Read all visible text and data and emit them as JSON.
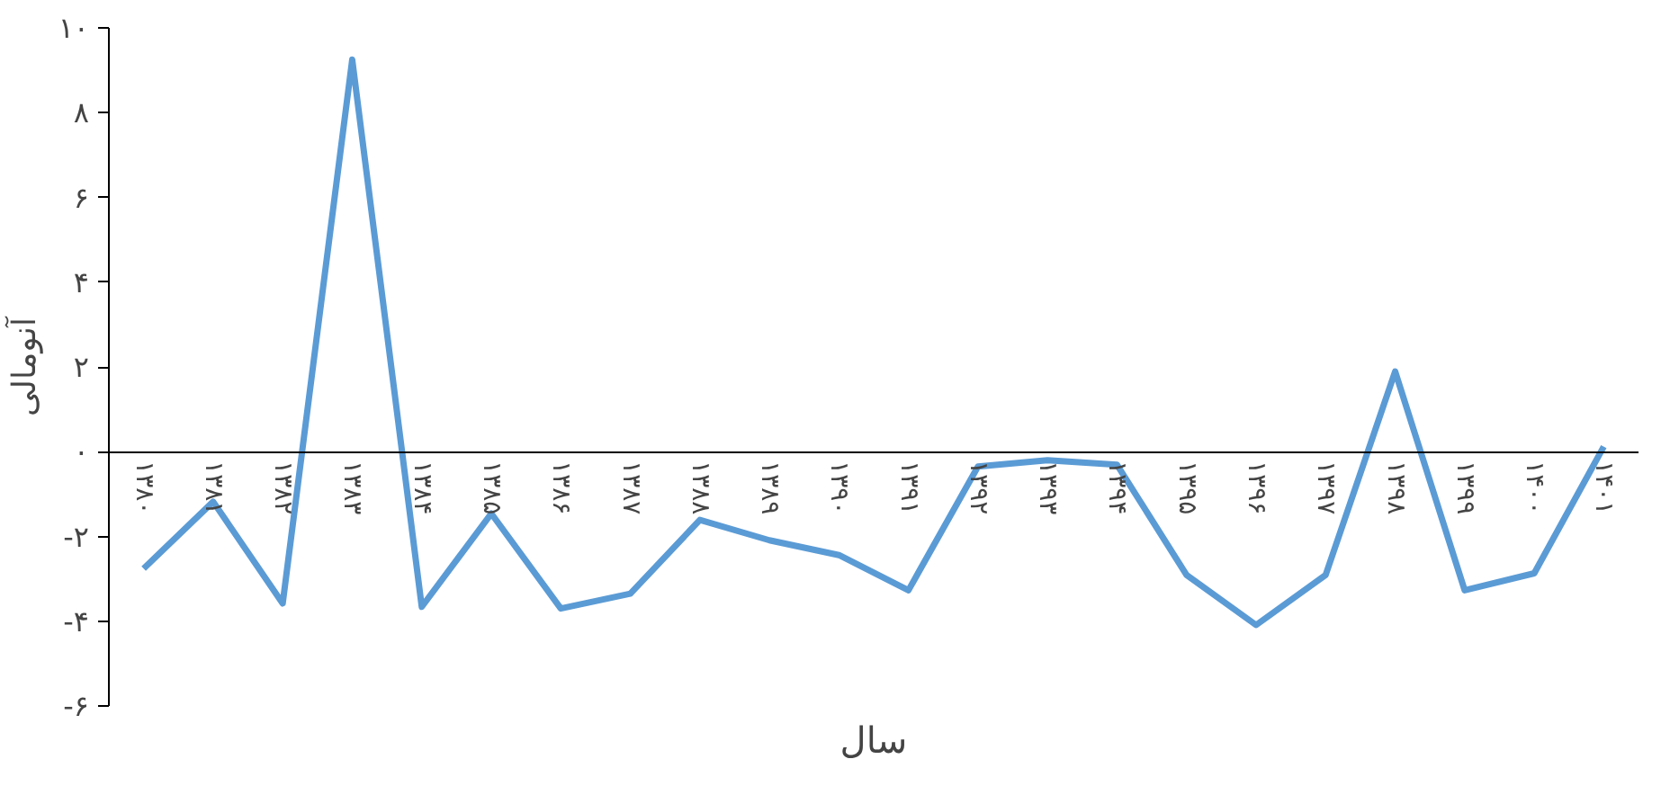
{
  "chart_data": {
    "type": "line",
    "xlabel": "سال",
    "ylabel": "آنومالی",
    "categories": [
      "۱۳۸۰",
      "۱۳۸۱",
      "۱۳۸۲",
      "۱۳۸۳",
      "۱۳۸۴",
      "۱۳۸۵",
      "۱۳۸۶",
      "۱۳۸۷",
      "۱۳۸۸",
      "۱۳۸۹",
      "۱۳۹۰",
      "۱۳۹۱",
      "۱۳۹۲",
      "۱۳۹۳",
      "۱۳۹۴",
      "۱۳۹۵",
      "۱۳۹۶",
      "۱۳۹۷",
      "۱۳۹۸",
      "۱۳۹۹",
      "۱۴۰۰",
      "۱۴۰۱"
    ],
    "series": [
      {
        "color": "#5b9bd5",
        "values": [
          -2.76,
          -1.18,
          -3.58,
          9.25,
          -3.66,
          -1.46,
          -3.7,
          -3.35,
          -1.61,
          -2.09,
          -2.44,
          -3.27,
          -0.35,
          -0.2,
          -0.31,
          -2.91,
          -4.09,
          -2.91,
          1.89,
          -3.27,
          -2.87,
          0.12
        ]
      }
    ],
    "ylim": [
      -6,
      10
    ],
    "yticks": [
      {
        "value": -6,
        "label": "-۶"
      },
      {
        "value": -4,
        "label": "-۴"
      },
      {
        "value": -2,
        "label": "-۲"
      },
      {
        "value": 0,
        "label": "۰"
      },
      {
        "value": 2,
        "label": "۲"
      },
      {
        "value": 4,
        "label": "۴"
      },
      {
        "value": 6,
        "label": "۶"
      },
      {
        "value": 8,
        "label": "۸"
      },
      {
        "value": 10,
        "label": "۱۰"
      }
    ],
    "grid": false,
    "marker": "none",
    "line_style": "solid"
  }
}
